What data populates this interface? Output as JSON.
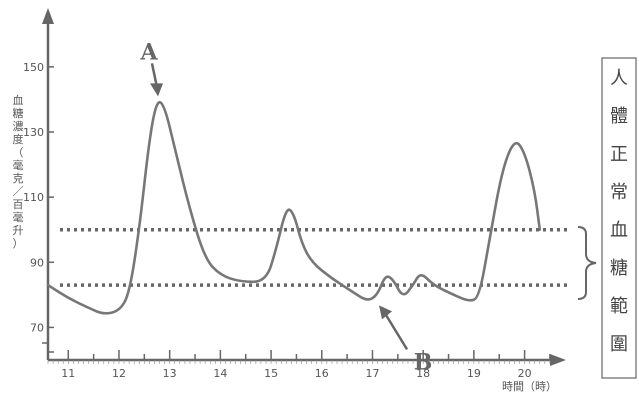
{
  "chart_data": {
    "type": "line",
    "ylabel": "血糖濃度（毫克／百毫升）",
    "xlabel": "時間（時）",
    "x_ticks": [
      11,
      12,
      13,
      14,
      15,
      16,
      17,
      18,
      19,
      20
    ],
    "y_ticks": [
      70,
      90,
      110,
      130,
      150
    ],
    "xlim": [
      10.6,
      20.6
    ],
    "ylim": [
      60,
      165
    ],
    "series": [
      {
        "points": [
          [
            10.6,
            83
          ],
          [
            11,
            79
          ],
          [
            11.4,
            76
          ],
          [
            11.7,
            74
          ],
          [
            12,
            75
          ],
          [
            12.2,
            80
          ],
          [
            12.4,
            100
          ],
          [
            12.6,
            128
          ],
          [
            12.75,
            140
          ],
          [
            12.9,
            138
          ],
          [
            13.1,
            125
          ],
          [
            13.4,
            106
          ],
          [
            13.7,
            91
          ],
          [
            14.0,
            86
          ],
          [
            14.4,
            84
          ],
          [
            14.9,
            84
          ],
          [
            15.1,
            94
          ],
          [
            15.3,
            107
          ],
          [
            15.45,
            105
          ],
          [
            15.6,
            96
          ],
          [
            15.8,
            90
          ],
          [
            16.2,
            85
          ],
          [
            16.6,
            81
          ],
          [
            16.9,
            78
          ],
          [
            17.1,
            80
          ],
          [
            17.25,
            86
          ],
          [
            17.4,
            85
          ],
          [
            17.6,
            79
          ],
          [
            17.8,
            83
          ],
          [
            17.95,
            87
          ],
          [
            18.2,
            83
          ],
          [
            18.6,
            80
          ],
          [
            18.9,
            78
          ],
          [
            19.1,
            79
          ],
          [
            19.3,
            96
          ],
          [
            19.55,
            118
          ],
          [
            19.8,
            128
          ],
          [
            20.0,
            124
          ],
          [
            20.2,
            112
          ],
          [
            20.3,
            100
          ]
        ]
      }
    ],
    "normal_range": {
      "low": 83,
      "high": 100,
      "label": "人體正常血糖範圍"
    },
    "annotations": [
      {
        "label": "A",
        "x": 12.75,
        "y": 140
      },
      {
        "label": "B",
        "x": 17.05,
        "y": 78
      }
    ],
    "grid": false
  }
}
